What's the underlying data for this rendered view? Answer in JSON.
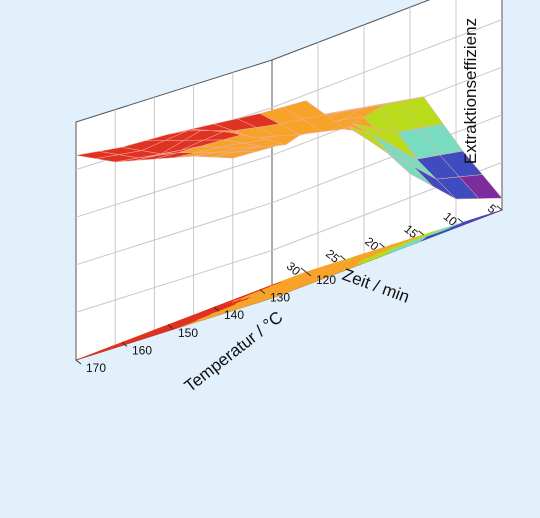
{
  "chart_data": {
    "type": "surface3d",
    "title": "",
    "xlabel": "Zeit / min",
    "ylabel": "Temperatur / °C",
    "zlabel": "Extraktionseffizienz",
    "x_ticks": [
      "5",
      "10",
      "15",
      "20",
      "25",
      "30"
    ],
    "y_ticks": [
      "120",
      "130",
      "140",
      "150",
      "160",
      "170"
    ],
    "xlim": [
      5,
      30
    ],
    "ylim": [
      120,
      170
    ],
    "zlim": [
      0,
      1
    ],
    "grid": true,
    "colormap": [
      "#7b2d9e",
      "#3f4cc0",
      "#79dcc0",
      "#b8dc1c",
      "#f7a32a",
      "#e03220",
      "#5a0f0a"
    ],
    "x": [
      5,
      10,
      15,
      20,
      25,
      30
    ],
    "y": [
      120,
      130,
      140,
      150,
      160,
      170
    ],
    "z": [
      [
        0.05,
        0.3,
        0.58,
        0.6,
        0.55,
        0.72
      ],
      [
        0.12,
        0.34,
        0.62,
        0.64,
        0.6,
        0.74
      ],
      [
        0.3,
        0.52,
        0.66,
        0.68,
        0.66,
        0.77
      ],
      [
        0.55,
        0.66,
        0.6,
        0.7,
        0.78,
        0.8
      ],
      [
        0.65,
        0.62,
        0.66,
        0.72,
        0.74,
        0.82
      ],
      [
        0.68,
        0.64,
        0.7,
        0.74,
        0.78,
        0.86
      ]
    ]
  }
}
